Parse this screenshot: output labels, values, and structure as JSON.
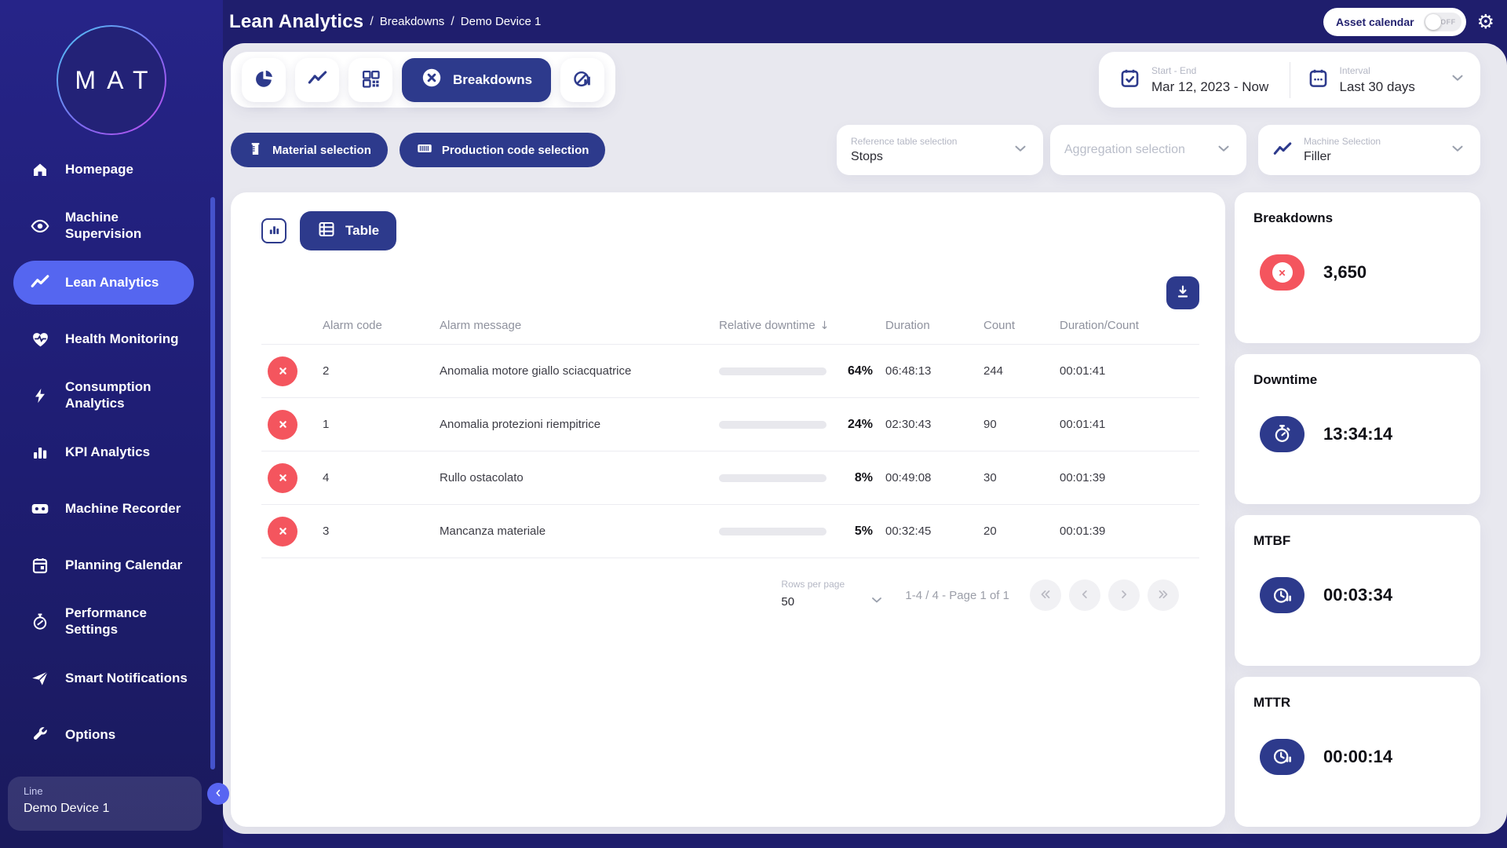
{
  "colors": {
    "primary_navy": "#2d3a8c",
    "topbar_navy": "#1f1e6d",
    "sidebar_active": "#5566f0",
    "error_red": "#f4555e",
    "content_background": "#e8e8ef"
  },
  "icons": {
    "gear": "⚙",
    "sort_desc": "↓"
  },
  "topbar": {
    "title": "Lean Analytics",
    "separator": "/",
    "breadcrumbs": [
      "Breakdowns",
      "Demo Device 1"
    ],
    "asset_calendar": {
      "label": "Asset calendar",
      "state": "OFF"
    }
  },
  "sidebar": {
    "logo": "MAT",
    "items": [
      {
        "label": "Homepage"
      },
      {
        "label": "Machine Supervision"
      },
      {
        "label": "Lean Analytics"
      },
      {
        "label": "Health Monitoring"
      },
      {
        "label": "Consumption Analytics"
      },
      {
        "label": "KPI Analytics"
      },
      {
        "label": "Machine Recorder"
      },
      {
        "label": "Planning Calendar"
      },
      {
        "label": "Performance Settings"
      },
      {
        "label": "Smart Notifications"
      },
      {
        "label": "Options"
      }
    ],
    "line_card": {
      "label": "Line",
      "value": "Demo Device 1"
    }
  },
  "tabs": {
    "active_label": "Breakdowns"
  },
  "datetime": {
    "start_end_label": "Start - End",
    "start_end_value": "Mar 12, 2023 - Now",
    "interval_label": "Interval",
    "interval_value": "Last 30 days"
  },
  "filters": {
    "material_label": "Material selection",
    "production_label": "Production code selection",
    "reference": {
      "label": "Reference table selection",
      "value": "Stops"
    },
    "aggregation": {
      "placeholder": "Aggregation selection"
    },
    "machine": {
      "label": "Machine Selection",
      "value": "Filler"
    }
  },
  "panel": {
    "view_label": "Table",
    "table": {
      "headers": {
        "code": "Alarm code",
        "message": "Alarm message",
        "downtime": "Relative downtime",
        "duration": "Duration",
        "count": "Count",
        "per_count": "Duration/Count"
      },
      "rows": [
        {
          "code": "2",
          "message": "Anomalia motore giallo sciacquatrice",
          "relative_downtime": "64%",
          "duration": "06:48:13",
          "count": "244",
          "duration_per_count": "00:01:41"
        },
        {
          "code": "1",
          "message": "Anomalia protezioni riempitrice",
          "relative_downtime": "24%",
          "duration": "02:30:43",
          "count": "90",
          "duration_per_count": "00:01:41"
        },
        {
          "code": "4",
          "message": "Rullo ostacolato",
          "relative_downtime": "8%",
          "duration": "00:49:08",
          "count": "30",
          "duration_per_count": "00:01:39"
        },
        {
          "code": "3",
          "message": "Mancanza materiale",
          "relative_downtime": "5%",
          "duration": "00:32:45",
          "count": "20",
          "duration_per_count": "00:01:39"
        }
      ]
    },
    "pagination": {
      "rows_per_page_label": "Rows per page",
      "rows_per_page_value": "50",
      "info": "1-4 / 4 - Page 1 of 1"
    }
  },
  "cards": [
    {
      "title": "Breakdowns",
      "value": "3,650"
    },
    {
      "title": "Downtime",
      "value": "13:34:14"
    },
    {
      "title": "MTBF",
      "value": "00:03:34"
    },
    {
      "title": "MTTR",
      "value": "00:00:14"
    }
  ]
}
